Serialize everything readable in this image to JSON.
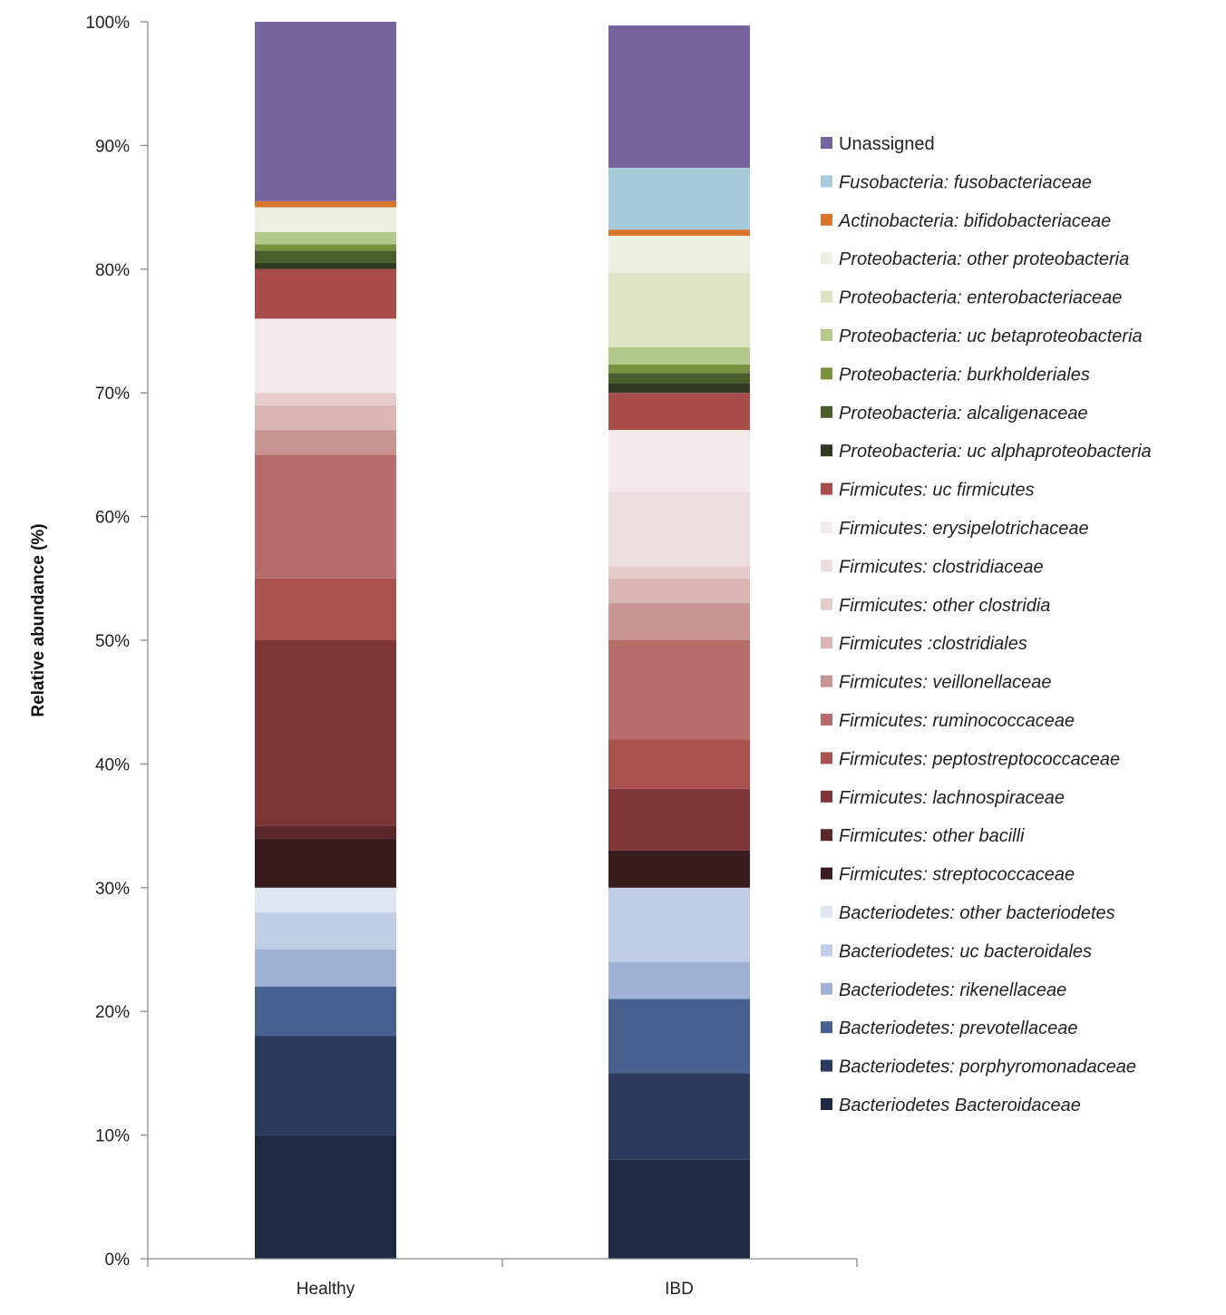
{
  "chart_data": {
    "type": "bar",
    "stacked": true,
    "title": "",
    "xlabel": "",
    "ylabel": "Relative abundance (%)",
    "ylim": [
      0,
      100
    ],
    "yticks": [
      "0%",
      "10%",
      "20%",
      "30%",
      "40%",
      "50%",
      "60%",
      "70%",
      "80%",
      "90%",
      "100%"
    ],
    "grid": false,
    "legend_position": "right",
    "categories": [
      "Healthy",
      "IBD"
    ],
    "series": [
      {
        "name": "Bacteriodetes Bacteroidaceae",
        "color": "#1f2a44",
        "italic": true,
        "values": [
          10,
          8
        ]
      },
      {
        "name": "Bacteriodetes: porphyromonadaceae",
        "color": "#2b3b5e",
        "italic": true,
        "values": [
          8,
          7
        ]
      },
      {
        "name": "Bacteriodetes: prevotellaceae",
        "color": "#47608f",
        "italic": true,
        "values": [
          4,
          6
        ]
      },
      {
        "name": "Bacteriodetes: rikenellaceae",
        "color": "#9fb2d6",
        "italic": true,
        "values": [
          3,
          3
        ]
      },
      {
        "name": "Bacteriodetes: uc bacteroidales",
        "color": "#bfcde6",
        "italic": true,
        "values": [
          3,
          6
        ]
      },
      {
        "name": "Bacteriodetes: other bacteriodetes",
        "color": "#dfe6f3",
        "italic": true,
        "values": [
          2,
          0
        ]
      },
      {
        "name": "Firmicutes: streptococcaceae",
        "color": "#3a1c1e",
        "italic": true,
        "values": [
          4,
          3
        ]
      },
      {
        "name": "Firmicutes: other bacilli",
        "color": "#5a2627",
        "italic": true,
        "values": [
          1,
          0
        ]
      },
      {
        "name": "Firmicutes: lachnospiraceae",
        "color": "#7e3535",
        "italic": true,
        "values": [
          15,
          5
        ]
      },
      {
        "name": "Firmicutes: peptostreptococcaceae",
        "color": "#a8514d",
        "italic": true,
        "values": [
          5,
          4
        ]
      },
      {
        "name": "Firmicutes: ruminococcaceae",
        "color": "#b66d6a",
        "italic": true,
        "values": [
          10,
          8
        ]
      },
      {
        "name": "Firmicutes: veillonellaceae",
        "color": "#c89593",
        "italic": true,
        "values": [
          2,
          3
        ]
      },
      {
        "name": "Firmicutes :clostridiales",
        "color": "#d9b5b3",
        "italic": true,
        "values": [
          2,
          2
        ]
      },
      {
        "name": "Firmicutes: other clostridia",
        "color": "#e6cdcc",
        "italic": true,
        "values": [
          1,
          1
        ]
      },
      {
        "name": "Firmicutes: clostridiaceae",
        "color": "#ecdcdc",
        "italic": true,
        "values": [
          0,
          6
        ]
      },
      {
        "name": "Firmicutes: erysipelotrichaceae",
        "color": "#f5eaea",
        "italic": true,
        "values": [
          6,
          5
        ]
      },
      {
        "name": "Firmicutes: uc firmicutes",
        "color": "#a84d4a",
        "italic": true,
        "values": [
          4,
          3
        ]
      },
      {
        "name": "Proteobacteria: uc alphaproteobacteria",
        "color": "#2f3a21",
        "italic": true,
        "values": [
          0.5,
          0.8
        ]
      },
      {
        "name": "Proteobacteria: alcaligenaceae",
        "color": "#4a5e2c",
        "italic": true,
        "values": [
          1,
          0.8
        ]
      },
      {
        "name": "Proteobacteria: burkholderiales",
        "color": "#77913f",
        "italic": true,
        "values": [
          0.5,
          0.7
        ]
      },
      {
        "name": "Proteobacteria: uc betaproteobacteria",
        "color": "#b3c98a",
        "italic": true,
        "values": [
          1,
          1.4
        ]
      },
      {
        "name": "Proteobacteria: enterobacteriaceae",
        "color": "#dbe4c3",
        "italic": true,
        "values": [
          0,
          6
        ]
      },
      {
        "name": "Proteobacteria: other proteobacteria",
        "color": "#ecf1df",
        "italic": true,
        "values": [
          2,
          3
        ]
      },
      {
        "name": "Actinobacteria: bifidobacteriaceae",
        "color": "#d9742c",
        "italic": true,
        "values": [
          0.5,
          0.5
        ]
      },
      {
        "name": "Fusobacteria: fusobacteriaceae",
        "color": "#a7cbdb",
        "italic": true,
        "values": [
          0,
          5
        ]
      },
      {
        "name": "Unassigned",
        "color": "#77639e",
        "italic": false,
        "values": [
          14.5,
          11.5
        ]
      }
    ]
  }
}
